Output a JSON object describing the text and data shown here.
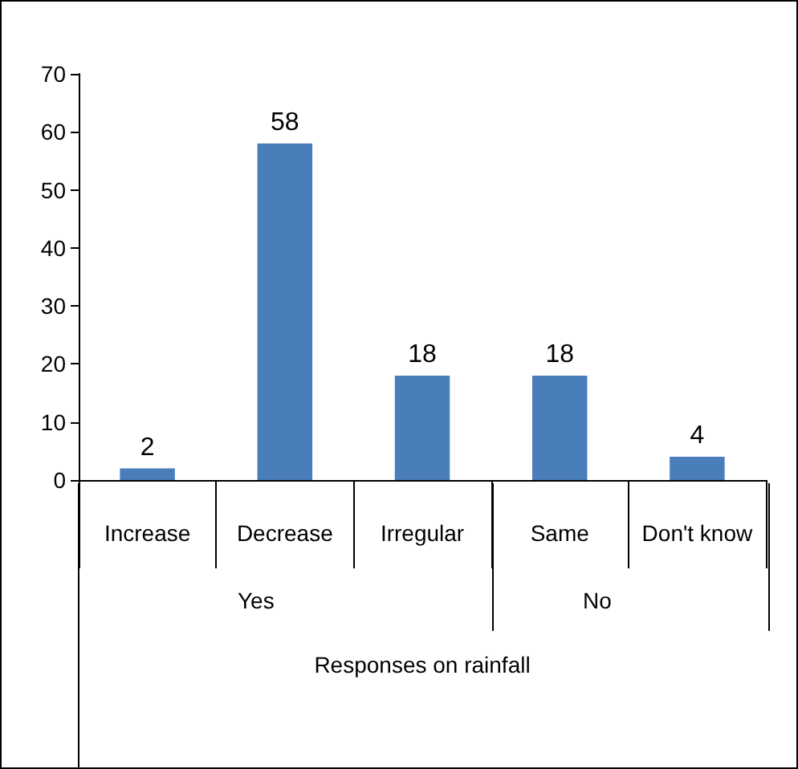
{
  "chart_data": {
    "type": "bar",
    "xlabel": "Responses on rainfall",
    "categories": [
      "Increase",
      "Decrease",
      "Irregular",
      "Same",
      "Don't know"
    ],
    "values": [
      2,
      58,
      18,
      18,
      4
    ],
    "color": "#4a7ebb",
    "ylim": [
      0,
      70
    ],
    "yticks": [
      0,
      10,
      20,
      30,
      40,
      50,
      60,
      70
    ],
    "grid": false,
    "data_labels": true,
    "annotations": [
      "Yes",
      "No"
    ]
  }
}
